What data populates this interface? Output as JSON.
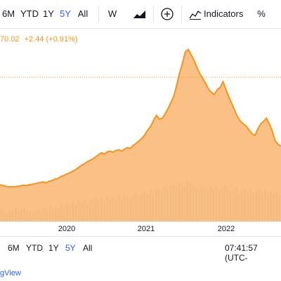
{
  "toolbar": {
    "ranges": [
      "6M",
      "YTD",
      "1Y",
      "5Y",
      "All"
    ],
    "active_range": "5Y",
    "interval": "W",
    "indicators_label": "Indicators",
    "percent_label": "%"
  },
  "legend": {
    "price": "70.02",
    "change": "+2.44 (+0.91%)"
  },
  "time_axis": {
    "labels": [
      "2020",
      "2021",
      "2022"
    ]
  },
  "bottom_bar": {
    "ranges": [
      "6M",
      "YTD",
      "1Y",
      "5Y",
      "All"
    ],
    "active_range": "5Y",
    "clock": "07:41:57 (UTC-"
  },
  "footer": {
    "brand": "gView"
  },
  "colors": {
    "accent": "#2962ff",
    "series": "#f7931a",
    "fill": "#f9b26b"
  },
  "chart_data": {
    "type": "area",
    "series": [
      {
        "values": [
          92,
          90,
          88,
          86,
          87,
          86,
          88,
          89,
          91,
          90,
          92,
          93,
          95,
          97,
          99,
          100,
          98,
          102,
          104,
          108,
          110,
          115,
          118,
          122,
          125,
          130,
          134,
          140,
          146,
          150,
          156,
          160,
          164,
          170,
          176,
          182,
          178,
          184,
          186,
          183,
          188,
          190,
          186,
          192,
          196,
          194,
          202,
          208,
          215,
          222,
          232,
          245,
          255,
          272,
          286,
          276,
          278,
          290,
          305,
          322,
          340,
          370,
          405,
          432,
          464,
          470,
          455,
          440,
          420,
          402,
          390,
          375,
          360,
          350,
          345,
          358,
          364,
          380,
          358,
          338,
          320,
          300,
          282,
          270,
          262,
          256,
          245,
          235,
          230,
          248,
          262,
          270,
          278,
          262,
          242,
          215,
          205,
          200
        ]
      }
    ],
    "ylim": [
      0,
      520
    ],
    "volume": [
      22,
      18,
      15,
      20,
      19,
      26,
      17,
      21,
      24,
      18,
      20,
      16,
      19,
      23,
      18,
      25,
      22,
      28,
      21,
      26,
      24,
      30,
      27,
      33,
      29,
      35,
      31,
      38,
      34,
      36,
      32,
      40,
      37,
      43,
      39,
      45,
      38,
      47,
      41,
      44,
      39,
      48,
      42,
      50,
      45,
      43,
      47,
      52,
      46,
      49,
      55,
      50,
      58,
      53,
      60,
      57,
      54,
      62,
      59,
      66,
      70,
      64,
      72,
      68,
      63,
      75,
      71,
      67,
      61,
      58,
      65,
      60,
      56,
      63,
      59,
      64,
      57,
      62,
      66,
      60,
      55,
      58,
      63,
      52,
      57,
      61,
      54,
      59,
      50,
      56,
      62,
      53,
      58,
      51,
      55,
      49,
      53,
      47
    ],
    "volume_max": 90
  }
}
